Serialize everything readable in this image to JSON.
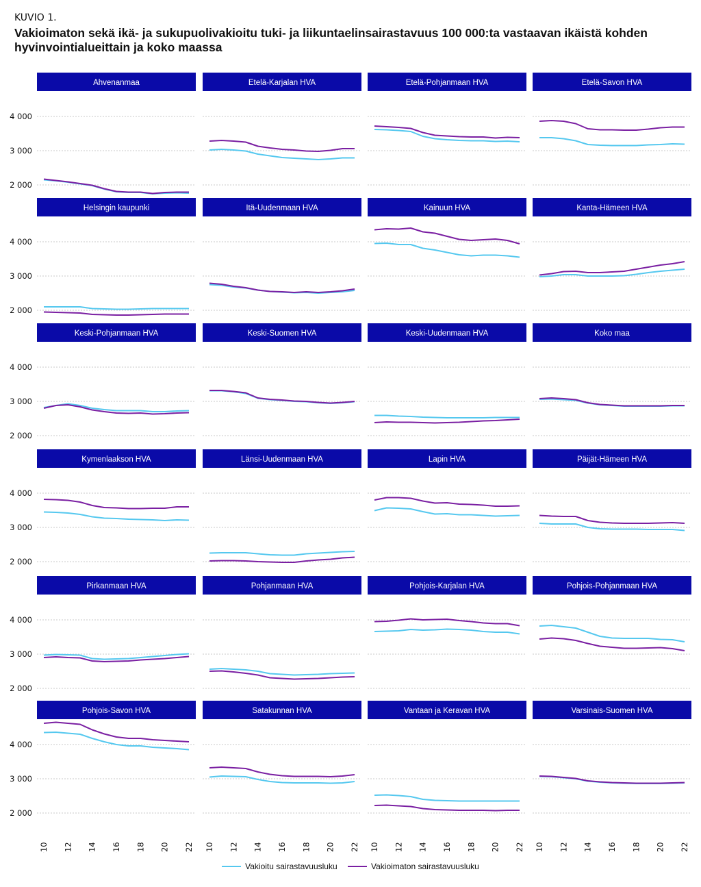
{
  "figure_label": "KUVIO 1.",
  "title": "Vakioimaton sekä ikä- ja sukupuolivakioitu tuki- ja liikuntaelinsairastavuus 100 000:ta vastaavan ikäistä kohden hyvinvointialueittain ja koko maassa",
  "colors": {
    "vakioitu": "#55c8ef",
    "vakioimaton": "#7a1fa2",
    "strip": "#0a0aa8",
    "strip_text": "#ffffff",
    "grid": "#c8c8c8"
  },
  "legend": [
    {
      "label": "Vakioitu sairastavuusluku",
      "color": "#55c8ef"
    },
    {
      "label": "Vakioimaton sairastavuusluku",
      "color": "#7a1fa2"
    }
  ],
  "chart_data": {
    "type": "line",
    "facet_columns": 4,
    "x": [
      2010,
      2011,
      2012,
      2013,
      2014,
      2015,
      2016,
      2017,
      2018,
      2019,
      2020,
      2021,
      2022
    ],
    "x_ticks": [
      2010,
      2012,
      2014,
      2016,
      2018,
      2020,
      2022
    ],
    "ylim": [
      1700,
      4600
    ],
    "y_ticks": [
      2000,
      3000,
      4000
    ],
    "y_tick_labels": [
      "2 000",
      "3 000",
      "4 000"
    ],
    "grid": true,
    "legend_position": "bottom",
    "series_names": [
      "Vakioitu sairastavuusluku",
      "Vakioimaton sairastavuusluku"
    ],
    "panels": [
      {
        "name": "Ahvenanmaa",
        "vakioitu": [
          2150,
          2120,
          2080,
          2030,
          1980,
          1880,
          1800,
          1780,
          1780,
          1740,
          1760,
          1770,
          1760
        ],
        "vakioimaton": [
          2170,
          2130,
          2090,
          2040,
          1990,
          1890,
          1810,
          1790,
          1790,
          1750,
          1780,
          1790,
          1790
        ]
      },
      {
        "name": "Etelä-Karjalan HVA",
        "vakioitu": [
          3020,
          3040,
          3020,
          2990,
          2900,
          2850,
          2800,
          2780,
          2760,
          2740,
          2760,
          2790,
          2790
        ],
        "vakioimaton": [
          3280,
          3300,
          3280,
          3250,
          3130,
          3080,
          3040,
          3020,
          2990,
          2980,
          3010,
          3060,
          3060
        ]
      },
      {
        "name": "Etelä-Pohjanmaan HVA",
        "vakioitu": [
          3620,
          3610,
          3590,
          3560,
          3420,
          3350,
          3320,
          3300,
          3290,
          3290,
          3270,
          3280,
          3260
        ],
        "vakioimaton": [
          3720,
          3700,
          3680,
          3650,
          3530,
          3450,
          3430,
          3410,
          3400,
          3400,
          3370,
          3390,
          3380
        ]
      },
      {
        "name": "Etelä-Savon HVA",
        "vakioitu": [
          3380,
          3380,
          3350,
          3290,
          3180,
          3160,
          3150,
          3150,
          3150,
          3170,
          3180,
          3200,
          3190
        ],
        "vakioimaton": [
          3860,
          3880,
          3860,
          3790,
          3640,
          3610,
          3610,
          3600,
          3600,
          3630,
          3670,
          3690,
          3690
        ]
      },
      {
        "name": "Helsingin kaupunki",
        "vakioitu": [
          2100,
          2100,
          2100,
          2100,
          2050,
          2040,
          2030,
          2030,
          2040,
          2050,
          2050,
          2050,
          2050
        ],
        "vakioimaton": [
          1950,
          1940,
          1930,
          1920,
          1880,
          1870,
          1860,
          1860,
          1870,
          1880,
          1890,
          1890,
          1890
        ]
      },
      {
        "name": "Itä-Uudenmaan HVA",
        "vakioitu": [
          2750,
          2730,
          2680,
          2650,
          2590,
          2550,
          2530,
          2510,
          2520,
          2500,
          2520,
          2540,
          2580
        ],
        "vakioimaton": [
          2790,
          2760,
          2700,
          2660,
          2590,
          2550,
          2540,
          2520,
          2540,
          2520,
          2540,
          2570,
          2620
        ]
      },
      {
        "name": "Kainuun HVA",
        "vakioitu": [
          3950,
          3960,
          3920,
          3920,
          3810,
          3760,
          3690,
          3620,
          3590,
          3610,
          3610,
          3590,
          3550
        ],
        "vakioimaton": [
          4350,
          4380,
          4370,
          4400,
          4290,
          4250,
          4160,
          4070,
          4040,
          4060,
          4080,
          4040,
          3940
        ]
      },
      {
        "name": "Kanta-Hämeen HVA",
        "vakioitu": [
          2980,
          3000,
          3040,
          3040,
          3000,
          3000,
          3000,
          3010,
          3050,
          3100,
          3140,
          3170,
          3200
        ],
        "vakioimaton": [
          3030,
          3070,
          3130,
          3140,
          3100,
          3100,
          3120,
          3140,
          3200,
          3260,
          3320,
          3360,
          3420
        ]
      },
      {
        "name": "Keski-Pohjanmaan HVA",
        "vakioitu": [
          2820,
          2880,
          2930,
          2880,
          2800,
          2760,
          2730,
          2730,
          2730,
          2700,
          2700,
          2720,
          2730
        ],
        "vakioimaton": [
          2800,
          2880,
          2900,
          2840,
          2750,
          2700,
          2660,
          2650,
          2660,
          2630,
          2640,
          2660,
          2670
        ]
      },
      {
        "name": "Keski-Suomen HVA",
        "vakioitu": [
          3310,
          3310,
          3280,
          3230,
          3090,
          3050,
          3030,
          3000,
          2990,
          2960,
          2940,
          2960,
          2990
        ],
        "vakioimaton": [
          3320,
          3320,
          3290,
          3250,
          3100,
          3060,
          3040,
          3010,
          3000,
          2970,
          2950,
          2970,
          3000
        ]
      },
      {
        "name": "Keski-Uudenmaan HVA",
        "vakioitu": [
          2590,
          2590,
          2570,
          2560,
          2540,
          2530,
          2520,
          2520,
          2520,
          2520,
          2530,
          2530,
          2530
        ],
        "vakioimaton": [
          2380,
          2400,
          2390,
          2390,
          2380,
          2370,
          2380,
          2390,
          2410,
          2430,
          2440,
          2460,
          2480
        ]
      },
      {
        "name": "Koko maa",
        "vakioitu": [
          3060,
          3070,
          3050,
          3030,
          2950,
          2900,
          2880,
          2860,
          2860,
          2860,
          2860,
          2870,
          2870
        ],
        "vakioimaton": [
          3080,
          3100,
          3080,
          3050,
          2960,
          2910,
          2890,
          2870,
          2870,
          2870,
          2870,
          2880,
          2880
        ]
      },
      {
        "name": "Kymenlaakson HVA",
        "vakioitu": [
          3450,
          3440,
          3420,
          3380,
          3310,
          3270,
          3260,
          3240,
          3230,
          3220,
          3200,
          3220,
          3210
        ],
        "vakioimaton": [
          3820,
          3810,
          3790,
          3740,
          3640,
          3580,
          3570,
          3550,
          3550,
          3560,
          3560,
          3600,
          3600
        ]
      },
      {
        "name": "Länsi-Uudenmaan HVA",
        "vakioitu": [
          2250,
          2260,
          2260,
          2260,
          2230,
          2200,
          2190,
          2190,
          2230,
          2250,
          2270,
          2290,
          2300
        ],
        "vakioimaton": [
          2020,
          2030,
          2030,
          2020,
          2000,
          1990,
          1980,
          1980,
          2020,
          2050,
          2070,
          2110,
          2130
        ]
      },
      {
        "name": "Lapin HVA",
        "vakioitu": [
          3490,
          3570,
          3560,
          3540,
          3460,
          3390,
          3400,
          3370,
          3370,
          3350,
          3330,
          3340,
          3350
        ],
        "vakioimaton": [
          3800,
          3870,
          3870,
          3850,
          3770,
          3710,
          3720,
          3680,
          3670,
          3650,
          3620,
          3620,
          3630
        ]
      },
      {
        "name": "Päijät-Hämeen HVA",
        "vakioitu": [
          3120,
          3100,
          3100,
          3100,
          3000,
          2960,
          2950,
          2950,
          2950,
          2940,
          2940,
          2940,
          2910
        ],
        "vakioimaton": [
          3350,
          3330,
          3320,
          3320,
          3200,
          3150,
          3130,
          3120,
          3120,
          3120,
          3130,
          3140,
          3120
        ]
      },
      {
        "name": "Pirkanmaan HVA",
        "vakioitu": [
          2970,
          2990,
          2980,
          2970,
          2870,
          2850,
          2860,
          2870,
          2900,
          2930,
          2960,
          2990,
          3010
        ],
        "vakioimaton": [
          2900,
          2920,
          2900,
          2890,
          2800,
          2780,
          2790,
          2800,
          2830,
          2850,
          2870,
          2900,
          2930
        ]
      },
      {
        "name": "Pohjanmaan HVA",
        "vakioitu": [
          2560,
          2580,
          2560,
          2540,
          2500,
          2430,
          2410,
          2390,
          2400,
          2410,
          2430,
          2440,
          2450
        ],
        "vakioimaton": [
          2500,
          2510,
          2480,
          2440,
          2390,
          2310,
          2290,
          2270,
          2280,
          2290,
          2310,
          2330,
          2340
        ]
      },
      {
        "name": "Pohjois-Karjalan HVA",
        "vakioitu": [
          3660,
          3670,
          3680,
          3720,
          3700,
          3710,
          3730,
          3720,
          3700,
          3660,
          3640,
          3640,
          3590
        ],
        "vakioimaton": [
          3950,
          3960,
          3990,
          4030,
          4000,
          4010,
          4020,
          3980,
          3950,
          3910,
          3890,
          3890,
          3830
        ]
      },
      {
        "name": "Pohjois-Pohjanmaan HVA",
        "vakioitu": [
          3820,
          3840,
          3800,
          3760,
          3640,
          3520,
          3470,
          3460,
          3460,
          3460,
          3430,
          3420,
          3360
        ],
        "vakioimaton": [
          3440,
          3470,
          3450,
          3400,
          3310,
          3230,
          3200,
          3170,
          3170,
          3180,
          3190,
          3160,
          3100
        ]
      },
      {
        "name": "Pohjois-Savon HVA",
        "vakioitu": [
          4350,
          4360,
          4330,
          4300,
          4180,
          4080,
          4000,
          3960,
          3960,
          3920,
          3900,
          3880,
          3850
        ],
        "vakioimaton": [
          4620,
          4650,
          4620,
          4590,
          4430,
          4310,
          4220,
          4180,
          4180,
          4140,
          4120,
          4100,
          4080
        ]
      },
      {
        "name": "Satakunnan HVA",
        "vakioitu": [
          3050,
          3080,
          3070,
          3060,
          2980,
          2920,
          2890,
          2880,
          2880,
          2880,
          2870,
          2880,
          2920
        ],
        "vakioimaton": [
          3320,
          3340,
          3320,
          3300,
          3200,
          3130,
          3090,
          3070,
          3070,
          3070,
          3060,
          3080,
          3120
        ]
      },
      {
        "name": "Vantaan ja Keravan HVA",
        "vakioitu": [
          2520,
          2530,
          2510,
          2480,
          2400,
          2370,
          2360,
          2350,
          2350,
          2350,
          2350,
          2350,
          2350
        ],
        "vakioimaton": [
          2220,
          2230,
          2210,
          2190,
          2130,
          2100,
          2090,
          2080,
          2080,
          2080,
          2070,
          2080,
          2080
        ]
      },
      {
        "name": "Varsinais-Suomen HVA",
        "vakioitu": [
          3070,
          3060,
          3030,
          3000,
          2930,
          2900,
          2880,
          2870,
          2860,
          2860,
          2860,
          2870,
          2880
        ],
        "vakioimaton": [
          3080,
          3070,
          3040,
          3010,
          2940,
          2910,
          2890,
          2880,
          2870,
          2870,
          2870,
          2880,
          2890
        ]
      }
    ]
  }
}
